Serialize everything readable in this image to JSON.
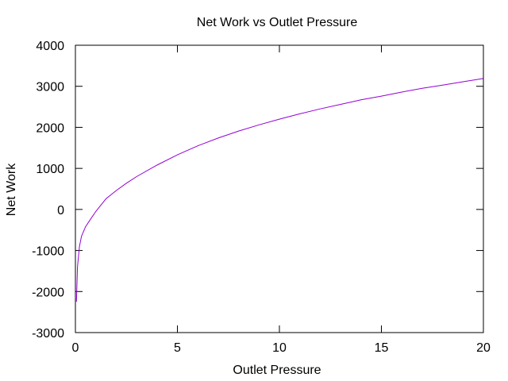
{
  "chart_data": {
    "type": "line",
    "title": "Net Work vs Outlet Pressure",
    "xlabel": "Outlet Pressure",
    "ylabel": "Net Work",
    "xlim": [
      0,
      20
    ],
    "ylim": [
      -3000,
      4000
    ],
    "xticks": [
      0,
      5,
      10,
      15,
      20
    ],
    "xtick_labels": [
      "0",
      "5",
      "10",
      "15",
      "20"
    ],
    "yticks": [
      -3000,
      -2000,
      -1000,
      0,
      1000,
      2000,
      3000,
      4000
    ],
    "ytick_labels": [
      "-3000",
      "-2000",
      "-1000",
      "0",
      "1000",
      "2000",
      "3000",
      "4000"
    ],
    "grid": false,
    "legend": "none",
    "series": [
      {
        "color": "#9400d3",
        "x": [
          0.05,
          0.1,
          0.2,
          0.3,
          0.5,
          0.75,
          1,
          1.5,
          2,
          2.5,
          3,
          4,
          5,
          6,
          7,
          8,
          9,
          10,
          11,
          12,
          13,
          14,
          15,
          16,
          17,
          18,
          19,
          20
        ],
        "y": [
          -2250,
          -1400,
          -900,
          -650,
          -420,
          -230,
          -50,
          260,
          460,
          640,
          800,
          1080,
          1330,
          1550,
          1740,
          1910,
          2060,
          2200,
          2330,
          2450,
          2560,
          2670,
          2760,
          2860,
          2950,
          3030,
          3110,
          3190
        ]
      }
    ]
  }
}
